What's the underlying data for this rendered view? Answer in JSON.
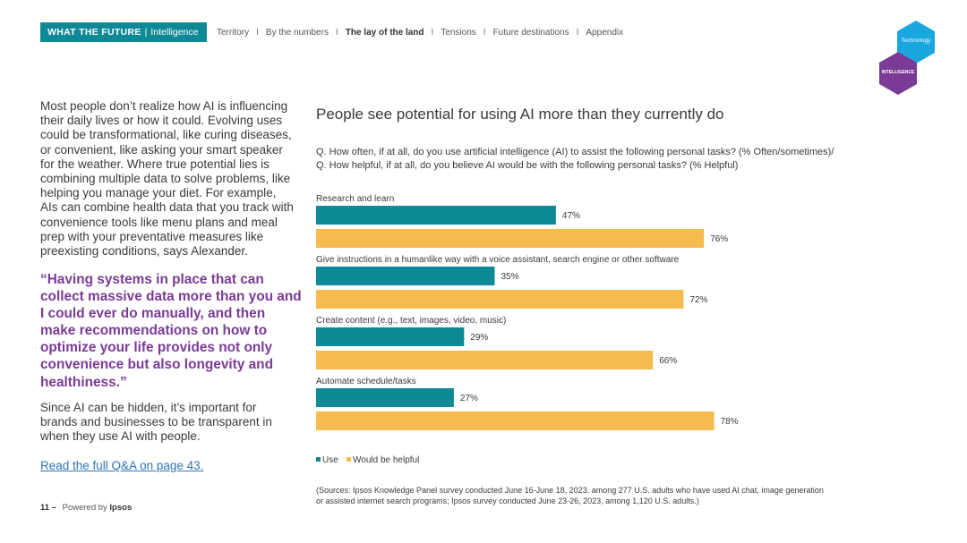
{
  "header": {
    "brand_bold": "WHAT THE FUTURE",
    "brand_sep": "|",
    "brand_suffix": "Intelligence",
    "nav": [
      {
        "label": "Territory",
        "active": false
      },
      {
        "label": "By the numbers",
        "active": false
      },
      {
        "label": "The lay of the land",
        "active": true
      },
      {
        "label": "Tensions",
        "active": false
      },
      {
        "label": "Future destinations",
        "active": false
      },
      {
        "label": "Appendix",
        "active": false
      }
    ],
    "nav_divider": "I",
    "hex_technology": "Technology",
    "hex_intelligence": "INTELLIGENCE",
    "hex_colors": {
      "technology": "#1aa7e0",
      "intelligence": "#7b3a96"
    }
  },
  "left": {
    "paragraph1": "Most people don’t realize how AI is influencing their daily lives or how it could. Evolving uses could be transformational, like curing diseases, or convenient, like asking your smart speaker for the weather. Where true potential lies is combining multiple data to solve problems, like helping you manage your diet. For example, AIs can combine health data that you track with convenience tools like menu plans and meal prep with your preventative measures like preexisting conditions, says Alexander.",
    "quote": "“Having systems in place that can collect massive data more than you and I could ever do manually, and then make recommendations on how to optimize your life provides not only convenience but also longevity and healthiness.”",
    "paragraph2": "Since AI can be hidden, it’s important for brands and businesses to be transparent in when they use AI with people.",
    "link": "Read the full Q&A on page 43.",
    "footer_page": "11 –",
    "footer_powered": "Powered by",
    "footer_brand": "Ipsos"
  },
  "right": {
    "question1": "Q. How often, if at all, do you use artificial intelligence (AI) to assist the following personal tasks? (% Often/sometimes)/",
    "question2": "Q. How helpful, if at all, do you believe AI would be with the following personal tasks? (% Helpful)",
    "sources1": "(Sources: Ipsos Knowledge Panel survey conducted June 16-June 18, 2023. among 277 U.S. adults who have used AI chat, image generation",
    "sources2": "or assisted internet search programs; Ipsos survey conducted June 23-26, 2023, among 1,120 U.S. adults.)"
  },
  "chart_data": {
    "type": "bar",
    "orientation": "horizontal",
    "title": "People see potential for using AI more than they currently do",
    "categories": [
      "Research and learn",
      "Give instructions in a humanlike way with a voice assistant, search engine or other software",
      "Create content (e.g., text, images, video, music)",
      "Automate schedule/tasks"
    ],
    "series": [
      {
        "name": "Use",
        "color": "#0e8a97",
        "values": [
          47,
          35,
          29,
          27
        ]
      },
      {
        "name": "Would be helpful",
        "color": "#f5bb4e",
        "values": [
          76,
          72,
          66,
          78
        ]
      }
    ],
    "value_suffix": "%",
    "xlim": [
      0,
      100
    ],
    "legend": "bottom-left",
    "grid": false
  }
}
